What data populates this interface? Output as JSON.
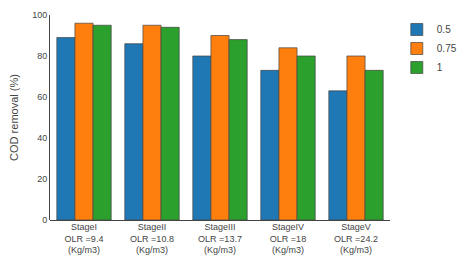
{
  "chart_data": {
    "type": "bar",
    "categories": [
      "StageI\nOLR =9.4\n(Kg/m3)",
      "StageII\nOLR =10.8\n(Kg/m3)",
      "StageIII\nOLR =13.7\n(Kg/m3)",
      "StageIV\nOLR =18\n(Kg/m3)",
      "StageV\nOLR =24.2\n(Kg/m3)"
    ],
    "series": [
      {
        "name": "0.5",
        "values": [
          89,
          86,
          80,
          73,
          63
        ]
      },
      {
        "name": "0.75",
        "values": [
          96,
          95,
          90,
          84,
          80
        ]
      },
      {
        "name": "1",
        "values": [
          95,
          94,
          88,
          80,
          73
        ]
      }
    ],
    "ylabel": "COD removal (%)",
    "ylim": [
      0,
      100
    ],
    "yticks": [
      0,
      20,
      40,
      60,
      80,
      100
    ],
    "grid": false,
    "legend": "upper right"
  }
}
